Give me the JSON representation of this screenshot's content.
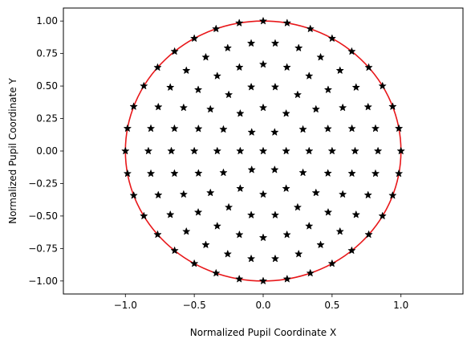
{
  "chart_data": {
    "type": "scatter",
    "xlabel": "Normalized Pupil Coordinate X",
    "ylabel": "Normalized Pupil Coordinate Y",
    "xlim": [
      -1.45,
      1.45
    ],
    "ylim": [
      -1.1,
      1.1
    ],
    "x_ticks": [
      -1.0,
      -0.5,
      0.0,
      0.5,
      1.0
    ],
    "x_tick_labels": [
      "−1.0",
      "−0.5",
      "0.0",
      "0.5",
      "1.0"
    ],
    "y_ticks": [
      -1.0,
      -0.75,
      -0.5,
      -0.25,
      0.0,
      0.25,
      0.5,
      0.75,
      1.0
    ],
    "y_tick_labels": [
      "−1.00",
      "−0.75",
      "−0.50",
      "−0.25",
      "0.00",
      "0.25",
      "0.50",
      "0.75",
      "1.00"
    ],
    "grid": false,
    "marker": "star",
    "marker_color": "#000000",
    "circle": {
      "center": [
        0,
        0
      ],
      "radius": 1.0,
      "color": "#e8171a"
    },
    "rings": [
      {
        "radius": 0.0,
        "count": 1
      },
      {
        "radius": 0.1667,
        "count": 6
      },
      {
        "radius": 0.3333,
        "count": 12
      },
      {
        "radius": 0.5,
        "count": 18
      },
      {
        "radius": 0.6667,
        "count": 24
      },
      {
        "radius": 0.8333,
        "count": 30
      },
      {
        "radius": 1.0,
        "count": 36
      }
    ]
  }
}
